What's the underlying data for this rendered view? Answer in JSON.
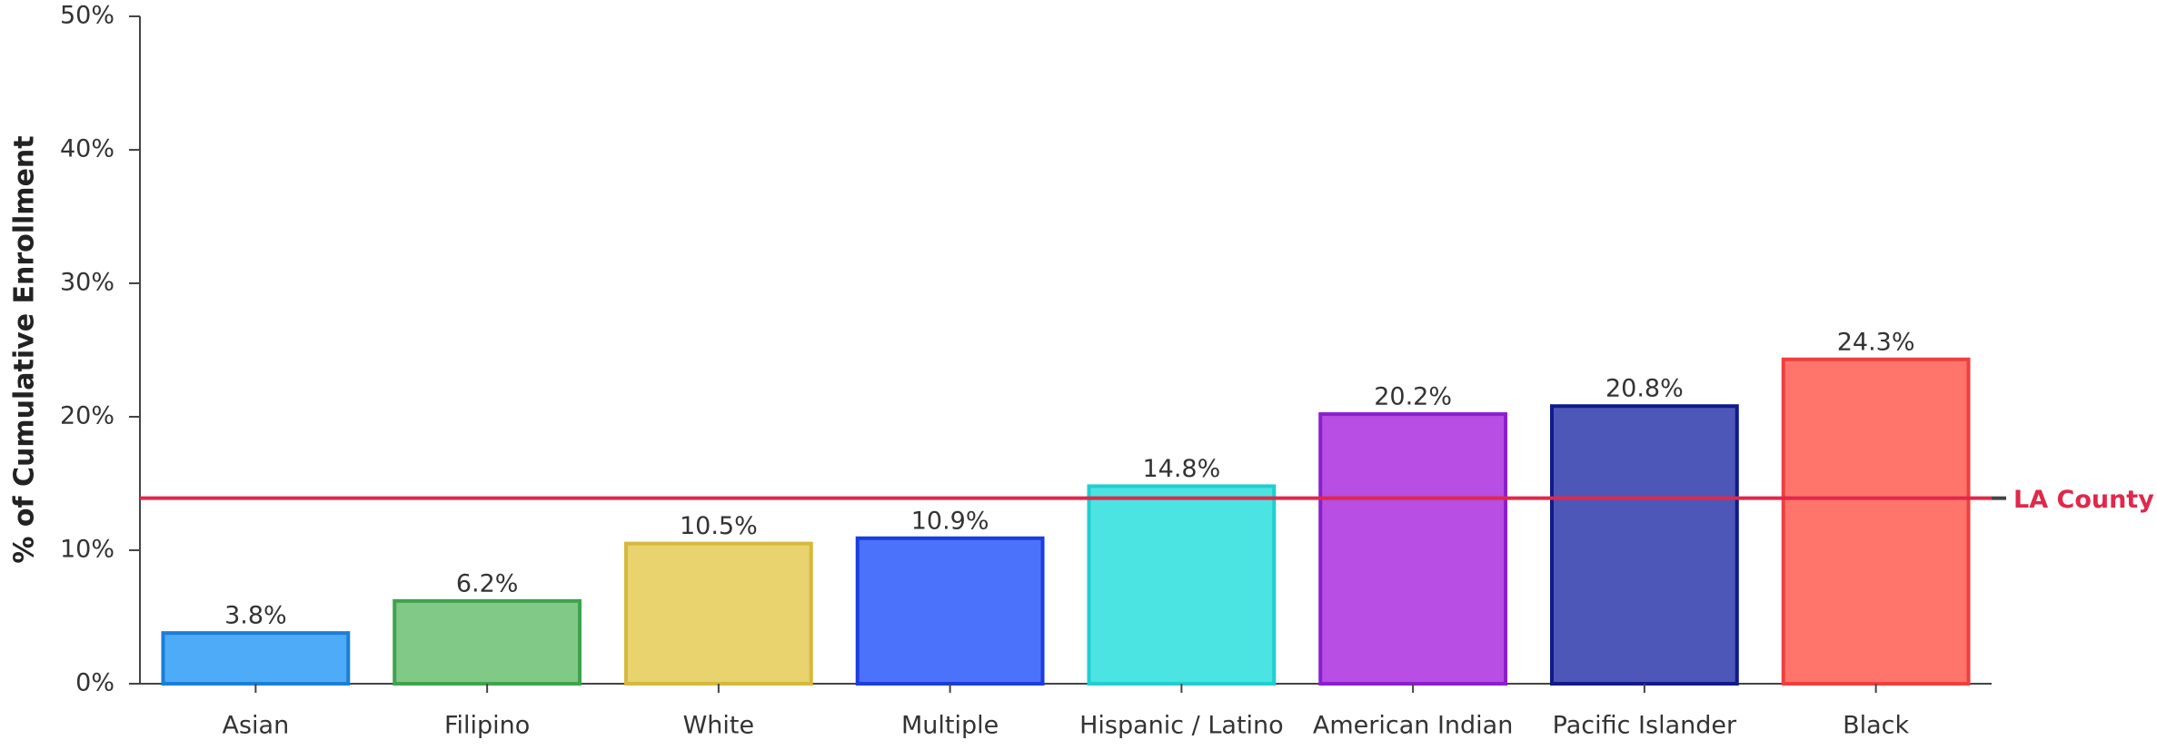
{
  "chart_data": {
    "type": "bar",
    "y_axis_label": "% of Cumulative Enrollment",
    "categories": [
      "Asian",
      "Filipino",
      "White",
      "Multiple",
      "Hispanic / Latino",
      "American Indian",
      "Pacific Islander",
      "Black"
    ],
    "values": [
      3.8,
      6.2,
      10.5,
      10.9,
      14.8,
      20.2,
      20.8,
      24.3
    ],
    "value_labels": [
      "3.8%",
      "6.2%",
      "10.5%",
      "10.9%",
      "14.8%",
      "20.2%",
      "20.8%",
      "24.3%"
    ],
    "colors": [
      "#4dabf7",
      "#80c987",
      "#e8d36f",
      "#4b72fa",
      "#4ce3e3",
      "#b84ee3",
      "#4c57b8",
      "#ff756b"
    ],
    "edge_colors": [
      "#1c7ed6",
      "#3fa34d",
      "#d4b93c",
      "#1a3de0",
      "#1fcfcf",
      "#8a1fcf",
      "#101a8a",
      "#f03e3e"
    ],
    "ylim": [
      0,
      50
    ],
    "yticks": [
      {
        "value": 0,
        "label": "0%"
      },
      {
        "value": 10,
        "label": "10%"
      },
      {
        "value": 20,
        "label": "20%"
      },
      {
        "value": 30,
        "label": "30%"
      },
      {
        "value": 40,
        "label": "40%"
      },
      {
        "value": 50,
        "label": "50%"
      }
    ],
    "reference_line": {
      "value": 13.9,
      "label": "LA County",
      "color": "#e0284a"
    }
  }
}
